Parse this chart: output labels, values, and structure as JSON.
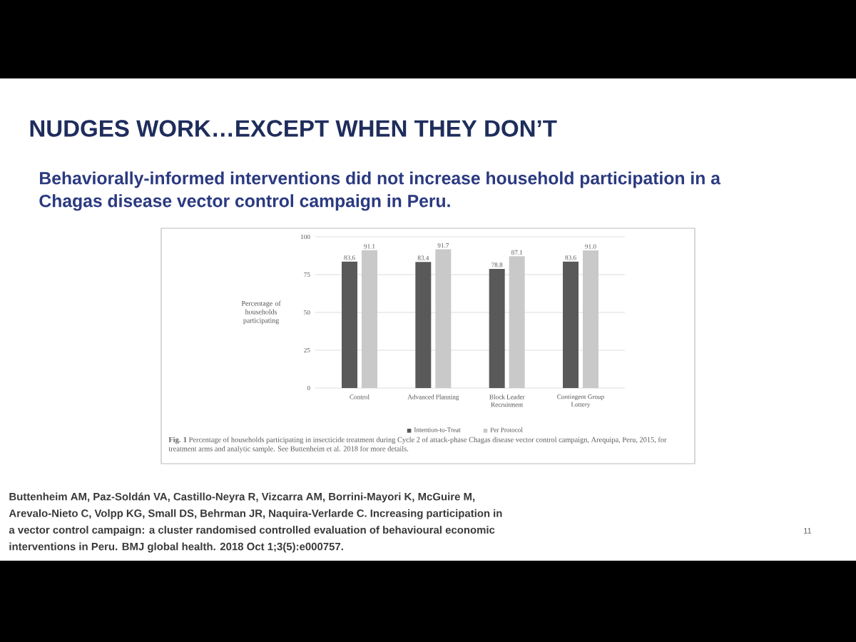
{
  "chart_data": {
    "type": "bar",
    "title": "NUDGES WORK…EXCEPT WHEN THEY DON’T",
    "subtitle": "Behaviorally-informed interventions did not increase household participation in a Chagas disease vector control campaign in Peru.",
    "ylabel": "Percentage of households participating",
    "categories": [
      "Control",
      "Advanced Planning",
      "Block Leader Recruitment",
      "Contingent Group Lottery"
    ],
    "series": [
      {
        "name": "Intention-to-Treat",
        "color": "#595959",
        "values": [
          83.6,
          83.4,
          78.8,
          83.6
        ],
        "value_labels": [
          "83.6",
          "83.4",
          "78.8",
          "83.6"
        ]
      },
      {
        "name": "Per Protocol",
        "color": "#c9c9c9",
        "values": [
          91.1,
          91.7,
          87.1,
          91.0
        ],
        "value_labels": [
          "91.1",
          "91.7",
          "87.1",
          "91.0"
        ]
      }
    ],
    "ylim": [
      0,
      100
    ],
    "yticks": [
      0,
      25,
      50,
      75,
      100
    ],
    "grid": "y",
    "legend": "bottom",
    "annotations": [
      "**Fig. 1** Percentage of households participating in insecticide treatment during Cycle 2 of attack-phase Chagas disease vector control campaign, Arequipa, Peru, 2015, for treatment arms and analytic sample. See Buttenheim et al. 2018 for more details.",
      "Buttenheim AM, Paz-Soldán VA, Castillo-Neyra R, Vizcarra AM, Borrini-Mayori K, McGuire M, Arevalo-Nieto C, Volpp KG, Small DS, Behrman JR, Naquira-Verlarde C. Increasing participation in a vector control campaign: a cluster randomised controlled evaluation of behavioural economic interventions in Peru. BMJ global health. 2018 Oct 1;3(5):e000757.",
      "11"
    ]
  }
}
